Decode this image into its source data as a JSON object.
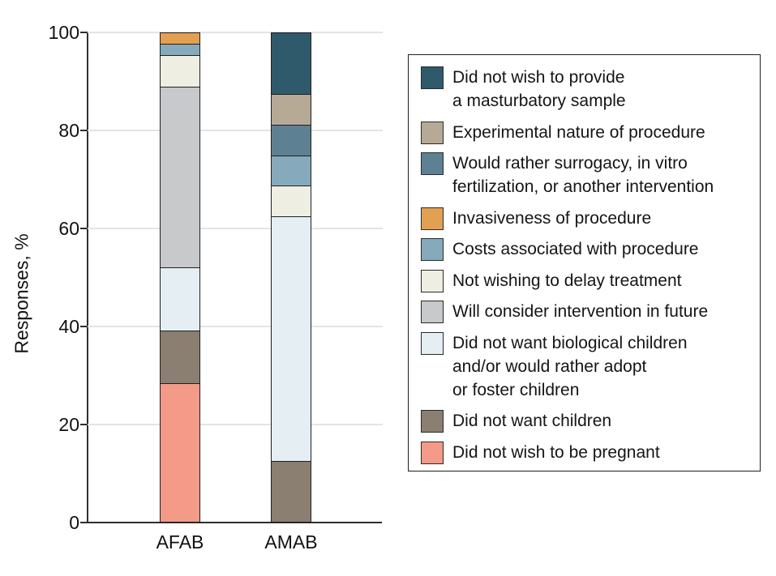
{
  "figure": {
    "y_axis": {
      "title": "Responses, %",
      "ticks": [
        0,
        20,
        40,
        60,
        80,
        100
      ]
    },
    "x_axis": {
      "categories": [
        "AFAB",
        "AMAB"
      ]
    }
  },
  "chart_data": {
    "type": "bar",
    "stacked": true,
    "title": "",
    "xlabel": "",
    "ylabel": "Responses, %",
    "ylim": [
      0,
      100
    ],
    "yticks": [
      0,
      20,
      40,
      60,
      80,
      100
    ],
    "grid": true,
    "legend_position": "right",
    "categories": [
      "AFAB",
      "AMAB"
    ],
    "stack_note": "segments stack bottom-to-top in reverse of series order; series order matches legend top-to-bottom and bar top-to-bottom",
    "series": [
      {
        "name": "Did not wish to provide a masturbatory sample",
        "legend_label": "Did not wish to provide\na masturbatory sample",
        "color": "#2F5A6B",
        "values": [
          0,
          12.5
        ]
      },
      {
        "name": "Experimental nature of procedure",
        "legend_label": "Experimental nature of procedure",
        "color": "#B6AA96",
        "values": [
          0,
          6.25
        ]
      },
      {
        "name": "Would rather surrogacy, in vitro fertilization, or another intervention",
        "legend_label": "Would rather surrogacy, in vitro\nfertilization, or another intervention",
        "color": "#5D8192",
        "values": [
          0,
          6.25
        ]
      },
      {
        "name": "Invasiveness of procedure",
        "legend_label": "Invasiveness of procedure",
        "color": "#E3A053",
        "values": [
          2.2,
          0
        ]
      },
      {
        "name": "Costs associated with procedure",
        "legend_label": "Costs associated with procedure",
        "color": "#86AABB",
        "values": [
          2.2,
          6.25
        ]
      },
      {
        "name": "Not wishing to delay treatment",
        "legend_label": "Not wishing to delay treatment",
        "color": "#EFEEE3",
        "values": [
          6.5,
          6.25
        ]
      },
      {
        "name": "Will consider intervention in future",
        "legend_label": "Will consider intervention in future",
        "color": "#C8C9CA",
        "values": [
          37.0,
          0
        ]
      },
      {
        "name": "Did not want biological children and/or would rather adopt or foster children",
        "legend_label": "Did not want biological children\nand/or would rather adopt\nor foster children",
        "color": "#E5EEF3",
        "values": [
          13.0,
          50.0
        ]
      },
      {
        "name": "Did not want children",
        "legend_label": "Did not want children",
        "color": "#8A7F70",
        "values": [
          10.9,
          12.5
        ]
      },
      {
        "name": "Did not wish to be pregnant",
        "legend_label": "Did not wish to be pregnant",
        "color": "#F39A88",
        "values": [
          28.3,
          0
        ]
      }
    ]
  }
}
